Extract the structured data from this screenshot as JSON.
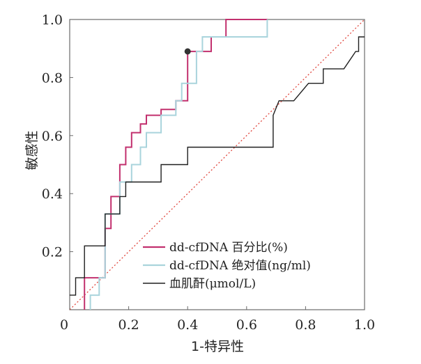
{
  "chart_data": {
    "type": "line",
    "title": "",
    "xlabel": "1-特异性",
    "ylabel": "敏感性",
    "xlim": [
      0,
      1
    ],
    "ylim": [
      0,
      1
    ],
    "x_ticks": [
      "0",
      "0.2",
      "0.4",
      "0.6",
      "0.8",
      "1.0"
    ],
    "y_ticks": [
      "0.2",
      "0.4",
      "0.6",
      "0.8",
      "1.0"
    ],
    "grid": false,
    "legend_position": "bottom-right",
    "reference_line": {
      "from": [
        0,
        0
      ],
      "to": [
        1,
        1
      ],
      "color": "#e0453c",
      "style": "dotted"
    },
    "marker": {
      "x": 0.4,
      "y": 0.89
    },
    "series": [
      {
        "name": "dd-cfDNA 百分比(%)",
        "color": "#c2306e",
        "points": [
          [
            0.05,
            0.0
          ],
          [
            0.05,
            0.11
          ],
          [
            0.12,
            0.11
          ],
          [
            0.12,
            0.28
          ],
          [
            0.14,
            0.28
          ],
          [
            0.14,
            0.39
          ],
          [
            0.17,
            0.39
          ],
          [
            0.17,
            0.5
          ],
          [
            0.19,
            0.5
          ],
          [
            0.19,
            0.56
          ],
          [
            0.21,
            0.56
          ],
          [
            0.21,
            0.61
          ],
          [
            0.24,
            0.61
          ],
          [
            0.24,
            0.64
          ],
          [
            0.26,
            0.64
          ],
          [
            0.26,
            0.67
          ],
          [
            0.31,
            0.67
          ],
          [
            0.31,
            0.69
          ],
          [
            0.36,
            0.69
          ],
          [
            0.36,
            0.72
          ],
          [
            0.4,
            0.72
          ],
          [
            0.4,
            0.89
          ],
          [
            0.48,
            0.89
          ],
          [
            0.48,
            0.94
          ],
          [
            0.53,
            0.94
          ],
          [
            0.53,
            1.0
          ],
          [
            0.67,
            1.0
          ]
        ]
      },
      {
        "name": "dd-cfDNA 绝对值(ng/ml)",
        "color": "#a9d4dc",
        "points": [
          [
            0.07,
            0.0
          ],
          [
            0.07,
            0.05
          ],
          [
            0.1,
            0.05
          ],
          [
            0.1,
            0.11
          ],
          [
            0.12,
            0.11
          ],
          [
            0.12,
            0.33
          ],
          [
            0.17,
            0.33
          ],
          [
            0.17,
            0.44
          ],
          [
            0.21,
            0.44
          ],
          [
            0.21,
            0.5
          ],
          [
            0.24,
            0.5
          ],
          [
            0.24,
            0.56
          ],
          [
            0.26,
            0.56
          ],
          [
            0.26,
            0.61
          ],
          [
            0.31,
            0.61
          ],
          [
            0.31,
            0.67
          ],
          [
            0.36,
            0.67
          ],
          [
            0.36,
            0.72
          ],
          [
            0.38,
            0.72
          ],
          [
            0.38,
            0.78
          ],
          [
            0.43,
            0.78
          ],
          [
            0.43,
            0.89
          ],
          [
            0.45,
            0.89
          ],
          [
            0.45,
            0.94
          ],
          [
            0.67,
            0.94
          ],
          [
            0.67,
            1.0
          ]
        ]
      },
      {
        "name": "血肌酐(μmol/L)",
        "color": "#1e1e1e",
        "points": [
          [
            0,
            0.05
          ],
          [
            0.02,
            0.05
          ],
          [
            0.02,
            0.11
          ],
          [
            0.05,
            0.11
          ],
          [
            0.05,
            0.22
          ],
          [
            0.12,
            0.22
          ],
          [
            0.12,
            0.33
          ],
          [
            0.17,
            0.33
          ],
          [
            0.17,
            0.39
          ],
          [
            0.19,
            0.39
          ],
          [
            0.19,
            0.44
          ],
          [
            0.31,
            0.44
          ],
          [
            0.31,
            0.5
          ],
          [
            0.4,
            0.5
          ],
          [
            0.4,
            0.56
          ],
          [
            0.69,
            0.56
          ],
          [
            0.69,
            0.67
          ],
          [
            0.71,
            0.72
          ],
          [
            0.76,
            0.72
          ],
          [
            0.81,
            0.78
          ],
          [
            0.86,
            0.78
          ],
          [
            0.86,
            0.83
          ],
          [
            0.93,
            0.83
          ],
          [
            0.97,
            0.89
          ],
          [
            0.98,
            0.89
          ],
          [
            0.98,
            0.94
          ],
          [
            1.0,
            0.94
          ]
        ]
      }
    ]
  }
}
